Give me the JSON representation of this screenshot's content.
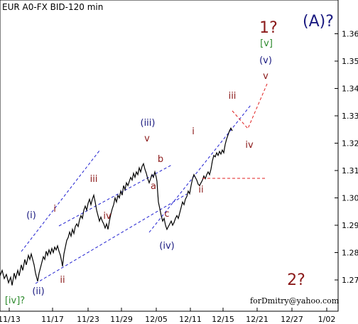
{
  "chart_data": {
    "type": "line",
    "title": "EUR A0-FX BID-120 min",
    "watermark": "forDmitry@yahoo.com",
    "x_tick_labels": [
      "11/13",
      "11/17",
      "11/23",
      "11/29",
      "12/05",
      "12/11",
      "12/15",
      "12/21",
      "12/27",
      "1/02"
    ],
    "y_tick_labels": [
      "1.27",
      "1.28",
      "1.29",
      "1.30",
      "1.31",
      "1.32",
      "1.33",
      "1.34",
      "1.35",
      "1.36"
    ],
    "ylim": [
      1.262,
      1.363
    ],
    "colors": {
      "navy": "#1a1a80",
      "maroon": "#8b1a1a",
      "green": "#2e8b2e",
      "red": "#e02020",
      "blue_channel": "#2020d0"
    },
    "series": [
      {
        "values": [
          [
            0,
            1.2715
          ],
          [
            3,
            1.2735
          ],
          [
            6,
            1.2705
          ],
          [
            9,
            1.272
          ],
          [
            12,
            1.269
          ],
          [
            15,
            1.271
          ],
          [
            17,
            1.268
          ],
          [
            20,
            1.2725
          ],
          [
            22,
            1.2705
          ],
          [
            25,
            1.2735
          ],
          [
            27,
            1.2715
          ],
          [
            30,
            1.2755
          ],
          [
            32,
            1.2735
          ],
          [
            35,
            1.2775
          ],
          [
            37,
            1.2755
          ],
          [
            40,
            1.279
          ],
          [
            42,
            1.2775
          ],
          [
            44,
            1.2795
          ],
          [
            46,
            1.2775
          ],
          [
            48,
            1.2755
          ],
          [
            50,
            1.2725
          ],
          [
            52,
            1.2705
          ],
          [
            53,
            1.2695
          ],
          [
            55,
            1.2725
          ],
          [
            57,
            1.2745
          ],
          [
            59,
            1.2765
          ],
          [
            61,
            1.2785
          ],
          [
            63,
            1.2775
          ],
          [
            65,
            1.2805
          ],
          [
            67,
            1.279
          ],
          [
            69,
            1.281
          ],
          [
            71,
            1.2795
          ],
          [
            73,
            1.2815
          ],
          [
            75,
            1.28
          ],
          [
            77,
            1.282
          ],
          [
            79,
            1.281
          ],
          [
            81,
            1.2825
          ],
          [
            83,
            1.2805
          ],
          [
            85,
            1.279
          ],
          [
            87,
            1.2765
          ],
          [
            88,
            1.275
          ],
          [
            90,
            1.2795
          ],
          [
            92,
            1.282
          ],
          [
            94,
            1.2845
          ],
          [
            96,
            1.2855
          ],
          [
            98,
            1.2875
          ],
          [
            100,
            1.286
          ],
          [
            102,
            1.2885
          ],
          [
            104,
            1.287
          ],
          [
            106,
            1.2895
          ],
          [
            108,
            1.2905
          ],
          [
            110,
            1.2895
          ],
          [
            112,
            1.292
          ],
          [
            114,
            1.2935
          ],
          [
            116,
            1.2925
          ],
          [
            118,
            1.2955
          ],
          [
            120,
            1.297
          ],
          [
            122,
            1.2955
          ],
          [
            124,
            1.298
          ],
          [
            126,
            1.2995
          ],
          [
            128,
            1.2975
          ],
          [
            130,
            1.2995
          ],
          [
            132,
            1.301
          ],
          [
            134,
            1.2985
          ],
          [
            136,
            1.2955
          ],
          [
            138,
            1.2935
          ],
          [
            140,
            1.2915
          ],
          [
            142,
            1.293
          ],
          [
            144,
            1.2915
          ],
          [
            146,
            1.2905
          ],
          [
            148,
            1.289
          ],
          [
            150,
            1.2905
          ],
          [
            152,
            1.2885
          ],
          [
            154,
            1.2915
          ],
          [
            156,
            1.294
          ],
          [
            158,
            1.296
          ],
          [
            160,
            1.2975
          ],
          [
            162,
            1.3
          ],
          [
            164,
            1.2985
          ],
          [
            166,
            1.301
          ],
          [
            168,
            1.3
          ],
          [
            170,
            1.3025
          ],
          [
            172,
            1.301
          ],
          [
            174,
            1.3045
          ],
          [
            176,
            1.303
          ],
          [
            178,
            1.3055
          ],
          [
            180,
            1.3045
          ],
          [
            182,
            1.306
          ],
          [
            184,
            1.3075
          ],
          [
            186,
            1.3065
          ],
          [
            188,
            1.309
          ],
          [
            190,
            1.3075
          ],
          [
            192,
            1.3095
          ],
          [
            194,
            1.3085
          ],
          [
            196,
            1.311
          ],
          [
            198,
            1.3095
          ],
          [
            200,
            1.3115
          ],
          [
            202,
            1.3125
          ],
          [
            204,
            1.3105
          ],
          [
            206,
            1.309
          ],
          [
            208,
            1.307
          ],
          [
            210,
            1.3055
          ],
          [
            212,
            1.307
          ],
          [
            214,
            1.3085
          ],
          [
            216,
            1.3075
          ],
          [
            218,
            1.3095
          ],
          [
            220,
            1.3075
          ],
          [
            221,
            1.306
          ],
          [
            222,
            1.302
          ],
          [
            223,
            1.2985
          ],
          [
            225,
            1.296
          ],
          [
            227,
            1.2935
          ],
          [
            229,
            1.2915
          ],
          [
            231,
            1.2925
          ],
          [
            233,
            1.29
          ],
          [
            235,
            1.2885
          ],
          [
            237,
            1.2895
          ],
          [
            239,
            1.2905
          ],
          [
            241,
            1.2915
          ],
          [
            243,
            1.29
          ],
          [
            245,
            1.291
          ],
          [
            247,
            1.2925
          ],
          [
            249,
            1.2935
          ],
          [
            251,
            1.2925
          ],
          [
            253,
            1.2945
          ],
          [
            255,
            1.2965
          ],
          [
            257,
            1.2985
          ],
          [
            259,
            1.2975
          ],
          [
            261,
            1.2995
          ],
          [
            263,
            1.3005
          ],
          [
            265,
            1.3025
          ],
          [
            267,
            1.3015
          ],
          [
            269,
            1.3045
          ],
          [
            271,
            1.307
          ],
          [
            273,
            1.3085
          ],
          [
            275,
            1.3075
          ],
          [
            277,
            1.3065
          ],
          [
            279,
            1.305
          ],
          [
            281,
            1.3045
          ],
          [
            283,
            1.3055
          ],
          [
            285,
            1.3065
          ],
          [
            287,
            1.308
          ],
          [
            289,
            1.307
          ],
          [
            291,
            1.3085
          ],
          [
            293,
            1.3095
          ],
          [
            295,
            1.3085
          ],
          [
            297,
            1.3105
          ],
          [
            299,
            1.3135
          ],
          [
            301,
            1.3155
          ],
          [
            303,
            1.315
          ],
          [
            305,
            1.3165
          ],
          [
            307,
            1.3155
          ],
          [
            309,
            1.317
          ],
          [
            311,
            1.316
          ],
          [
            313,
            1.3175
          ],
          [
            315,
            1.3165
          ],
          [
            317,
            1.3195
          ],
          [
            319,
            1.3215
          ],
          [
            321,
            1.323
          ],
          [
            323,
            1.3245
          ],
          [
            325,
            1.3255
          ],
          [
            327,
            1.3245
          ]
        ]
      }
    ],
    "annotations": {
      "big": [
        {
          "text": "1?",
          "color": "maroon"
        },
        {
          "text": "(A)?",
          "color": "navy"
        },
        {
          "text": "2?",
          "color": "maroon"
        }
      ],
      "labels": [
        {
          "text": "[iv]?",
          "color": "green"
        },
        {
          "text": "(ii)",
          "color": "navy"
        },
        {
          "text": "(i)",
          "color": "navy"
        },
        {
          "text": "i",
          "color": "maroon"
        },
        {
          "text": "ii",
          "color": "maroon"
        },
        {
          "text": "iii",
          "color": "maroon"
        },
        {
          "text": "iv",
          "color": "maroon"
        },
        {
          "text": "(iii)",
          "color": "navy"
        },
        {
          "text": "v",
          "color": "maroon"
        },
        {
          "text": "b",
          "color": "maroon"
        },
        {
          "text": "a",
          "color": "maroon"
        },
        {
          "text": "c",
          "color": "maroon"
        },
        {
          "text": "(iv)",
          "color": "navy"
        },
        {
          "text": "i",
          "color": "maroon"
        },
        {
          "text": "ii",
          "color": "maroon"
        },
        {
          "text": "iii",
          "color": "maroon"
        },
        {
          "text": "iv",
          "color": "maroon"
        },
        {
          "text": "v",
          "color": "maroon"
        },
        {
          "text": "(v)",
          "color": "navy"
        },
        {
          "text": "[v]",
          "color": "green"
        }
      ]
    }
  }
}
